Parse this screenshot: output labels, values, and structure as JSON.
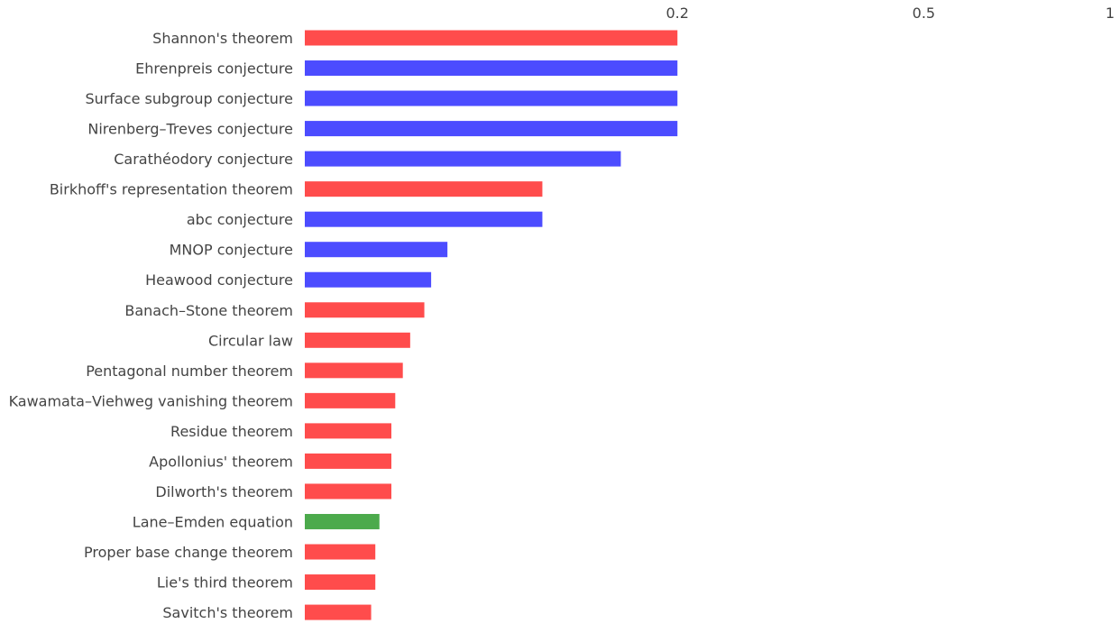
{
  "chart_data": {
    "type": "bar",
    "orientation": "horizontal",
    "x_scale": "log",
    "xlim": [
      0.05,
      1
    ],
    "xticks": [
      {
        "value": 0.2,
        "label": "0.2"
      },
      {
        "value": 0.5,
        "label": "0.5"
      },
      {
        "value": 1,
        "label": "1"
      }
    ],
    "grid": false,
    "title": "",
    "xlabel": "",
    "ylabel": "",
    "colors": {
      "red": "#ff4c4c",
      "blue": "#4c4cff",
      "green": "#4caa4c"
    },
    "bars": [
      {
        "label": "Shannon's theorem",
        "value": 0.2,
        "color": "#ff4c4c"
      },
      {
        "label": "Ehrenpreis conjecture",
        "value": 0.2,
        "color": "#4c4cff"
      },
      {
        "label": "Surface subgroup conjecture",
        "value": 0.2,
        "color": "#4c4cff"
      },
      {
        "label": "Nirenberg–Treves conjecture",
        "value": 0.2,
        "color": "#4c4cff"
      },
      {
        "label": "Carathéodory conjecture",
        "value": 0.162,
        "color": "#4c4cff"
      },
      {
        "label": "Birkhoff's representation theorem",
        "value": 0.121,
        "color": "#ff4c4c"
      },
      {
        "label": "abc conjecture",
        "value": 0.121,
        "color": "#4c4cff"
      },
      {
        "label": "MNOP conjecture",
        "value": 0.085,
        "color": "#4c4cff"
      },
      {
        "label": "Heawood conjecture",
        "value": 0.08,
        "color": "#4c4cff"
      },
      {
        "label": "Banach–Stone theorem",
        "value": 0.078,
        "color": "#ff4c4c"
      },
      {
        "label": "Circular law",
        "value": 0.074,
        "color": "#ff4c4c"
      },
      {
        "label": "Pentagonal number theorem",
        "value": 0.072,
        "color": "#ff4c4c"
      },
      {
        "label": "Kawamata–Viehweg vanishing theorem",
        "value": 0.07,
        "color": "#ff4c4c"
      },
      {
        "label": "Residue theorem",
        "value": 0.069,
        "color": "#ff4c4c"
      },
      {
        "label": "Apollonius' theorem",
        "value": 0.069,
        "color": "#ff4c4c"
      },
      {
        "label": "Dilworth's theorem",
        "value": 0.069,
        "color": "#ff4c4c"
      },
      {
        "label": "Lane–Emden equation",
        "value": 0.066,
        "color": "#4caa4c"
      },
      {
        "label": "Proper base change theorem",
        "value": 0.065,
        "color": "#ff4c4c"
      },
      {
        "label": "Lie's third theorem",
        "value": 0.065,
        "color": "#ff4c4c"
      },
      {
        "label": "Savitch's theorem",
        "value": 0.064,
        "color": "#ff4c4c"
      }
    ]
  }
}
